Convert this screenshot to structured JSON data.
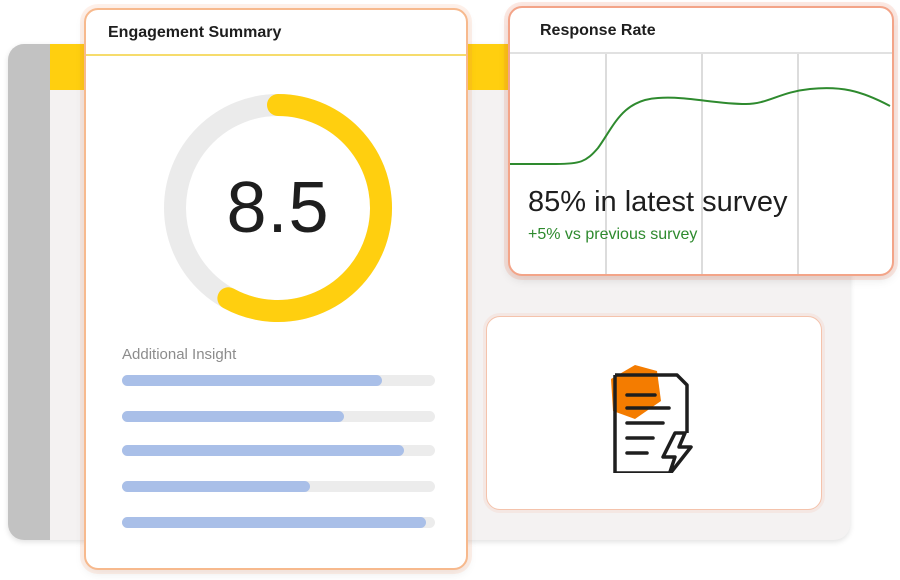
{
  "colors": {
    "accent_yellow": "#ffcf0f",
    "ring_track": "#ebebeb",
    "bar_fill": "#a9bfe8",
    "bar_track": "#ececec",
    "trend_green": "#2e8a2e",
    "icon_orange": "#f47c00",
    "icon_stroke": "#1e1e1e"
  },
  "engagement": {
    "title": "Engagement Summary",
    "score": "8.5",
    "score_fraction": 0.58,
    "insight_label": "Additional Insight",
    "insight_bars": [
      0.83,
      0.71,
      0.9,
      0.6,
      0.97
    ]
  },
  "response": {
    "title": "Response Rate",
    "headline": "85% in latest survey",
    "subtext": "+5% vs previous survey"
  },
  "doc_card": {
    "icon": "document-lightning-icon"
  }
}
